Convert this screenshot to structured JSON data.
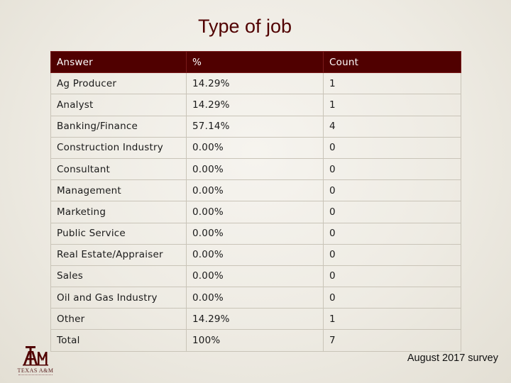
{
  "title": "Type of job",
  "table": {
    "headers": [
      "Answer",
      "%",
      "Count"
    ],
    "rows": [
      [
        "Ag Producer",
        "14.29%",
        "1"
      ],
      [
        "Analyst",
        "14.29%",
        "1"
      ],
      [
        "Banking/Finance",
        "57.14%",
        "4"
      ],
      [
        "Construction Industry",
        "0.00%",
        "0"
      ],
      [
        "Consultant",
        "0.00%",
        "0"
      ],
      [
        "Management",
        "0.00%",
        "0"
      ],
      [
        "Marketing",
        "0.00%",
        "0"
      ],
      [
        "Public Service",
        "0.00%",
        "0"
      ],
      [
        "Real Estate/Appraiser",
        "0.00%",
        "0"
      ],
      [
        "Sales",
        "0.00%",
        "0"
      ],
      [
        "Oil and Gas Industry",
        "0.00%",
        "0"
      ],
      [
        "Other",
        "14.29%",
        "1"
      ],
      [
        "Total",
        "100%",
        "7"
      ]
    ]
  },
  "logo": {
    "text": "TEXAS A&M",
    "icon": "texas-am-logo-icon"
  },
  "footer_note": "August 2017 survey",
  "colors": {
    "header_bg": "#500000",
    "title": "#500000",
    "border": "#c9c4b8"
  }
}
